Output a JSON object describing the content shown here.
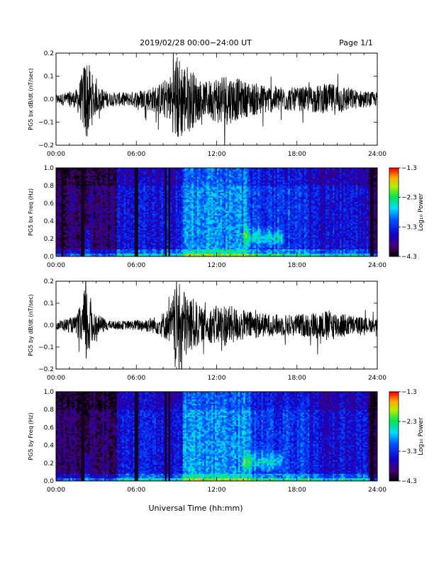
{
  "header": {
    "title": "2019/02/28  00:00−24:00 UT",
    "page": "Page 1/1"
  },
  "footer": {
    "xlabel": "Universal Time (hh:mm)"
  },
  "chart_data": [
    {
      "type": "line",
      "ylabel": "PG5 bx dB/dt (nT/sec)",
      "xlim": [
        0,
        24
      ],
      "ylim": [
        -0.2,
        0.2
      ],
      "x_ticks": [
        "00:00",
        "06:00",
        "12:00",
        "18:00",
        "24:00"
      ],
      "y_ticks": [
        "−0.2",
        "−0.1",
        "0.0",
        "0.1",
        "0.2"
      ],
      "envelope": [
        {
          "hour": 0.0,
          "amp": 0.02
        },
        {
          "hour": 1.5,
          "amp": 0.04
        },
        {
          "hour": 2.0,
          "amp": 0.12
        },
        {
          "hour": 2.2,
          "amp": 0.2
        },
        {
          "hour": 3.0,
          "amp": 0.06
        },
        {
          "hour": 4.0,
          "amp": 0.03
        },
        {
          "hour": 5.5,
          "amp": 0.03
        },
        {
          "hour": 7.5,
          "amp": 0.06
        },
        {
          "hour": 8.5,
          "amp": 0.1
        },
        {
          "hour": 9.0,
          "amp": 0.2
        },
        {
          "hour": 10.0,
          "amp": 0.14
        },
        {
          "hour": 11.0,
          "amp": 0.07
        },
        {
          "hour": 12.5,
          "amp": 0.12
        },
        {
          "hour": 14.0,
          "amp": 0.08
        },
        {
          "hour": 16.0,
          "amp": 0.06
        },
        {
          "hour": 18.0,
          "amp": 0.05
        },
        {
          "hour": 21.0,
          "amp": 0.07
        },
        {
          "hour": 22.5,
          "amp": 0.04
        },
        {
          "hour": 24.0,
          "amp": 0.03
        }
      ]
    },
    {
      "type": "heatmap",
      "ylabel": "PG5 bx Freq (Hz)",
      "colorbar_label": "Log₁₀ Power",
      "xlim": [
        0,
        24
      ],
      "ylim": [
        0,
        1.0
      ],
      "zlim": [
        -4.3,
        -1.3
      ],
      "x_ticks": [
        "00:00",
        "06:00",
        "12:00",
        "18:00",
        "24:00"
      ],
      "y_ticks": [
        "0.0",
        "0.2",
        "0.4",
        "0.6",
        "0.8",
        "1.0"
      ],
      "colorbar_ticks": [
        "−1.3",
        "−2.3",
        "−3.3",
        "−4.3"
      ],
      "dark_columns_hours": [
        0.5,
        2.0,
        6.0,
        8.2,
        8.5,
        23.6
      ],
      "enhanced_region": {
        "hours": [
          14.0,
          17.0
        ],
        "freq_hz": [
          0.1,
          0.35
        ],
        "log_power": -2.3
      }
    },
    {
      "type": "line",
      "ylabel": "PG5 by dB/dt (nT/sec)",
      "xlim": [
        0,
        24
      ],
      "ylim": [
        -0.2,
        0.2
      ],
      "x_ticks": [
        "00:00",
        "06:00",
        "12:00",
        "18:00",
        "24:00"
      ],
      "y_ticks": [
        "−0.2",
        "−0.1",
        "0.0",
        "0.1",
        "0.2"
      ],
      "envelope": [
        {
          "hour": 0.0,
          "amp": 0.02
        },
        {
          "hour": 1.5,
          "amp": 0.04
        },
        {
          "hour": 2.0,
          "amp": 0.12
        },
        {
          "hour": 2.2,
          "amp": 0.2
        },
        {
          "hour": 3.0,
          "amp": 0.05
        },
        {
          "hour": 4.0,
          "amp": 0.02
        },
        {
          "hour": 5.5,
          "amp": 0.02
        },
        {
          "hour": 7.5,
          "amp": 0.04
        },
        {
          "hour": 8.5,
          "amp": 0.08
        },
        {
          "hour": 9.0,
          "amp": 0.2
        },
        {
          "hour": 10.0,
          "amp": 0.14
        },
        {
          "hour": 11.0,
          "amp": 0.07
        },
        {
          "hour": 12.5,
          "amp": 0.1
        },
        {
          "hour": 14.0,
          "amp": 0.07
        },
        {
          "hour": 16.0,
          "amp": 0.05
        },
        {
          "hour": 18.0,
          "amp": 0.05
        },
        {
          "hour": 20.5,
          "amp": 0.07
        },
        {
          "hour": 22.5,
          "amp": 0.04
        },
        {
          "hour": 24.0,
          "amp": 0.03
        }
      ]
    },
    {
      "type": "heatmap",
      "ylabel": "PG5 by Freq (Hz)",
      "colorbar_label": "Log₁₀ Power",
      "xlim": [
        0,
        24
      ],
      "ylim": [
        0,
        1.0
      ],
      "zlim": [
        -4.3,
        -1.3
      ],
      "x_ticks": [
        "00:00",
        "06:00",
        "12:00",
        "18:00",
        "24:00"
      ],
      "y_ticks": [
        "0.0",
        "0.2",
        "0.4",
        "0.6",
        "0.8",
        "1.0"
      ],
      "colorbar_ticks": [
        "−1.3",
        "−2.3",
        "−3.3",
        "−4.3"
      ],
      "dark_columns_hours": [
        2.0,
        6.0,
        8.2,
        8.5,
        23.6
      ],
      "enhanced_region": {
        "hours": [
          14.0,
          17.0
        ],
        "freq_hz": [
          0.1,
          0.35
        ],
        "log_power": -2.3
      }
    }
  ]
}
